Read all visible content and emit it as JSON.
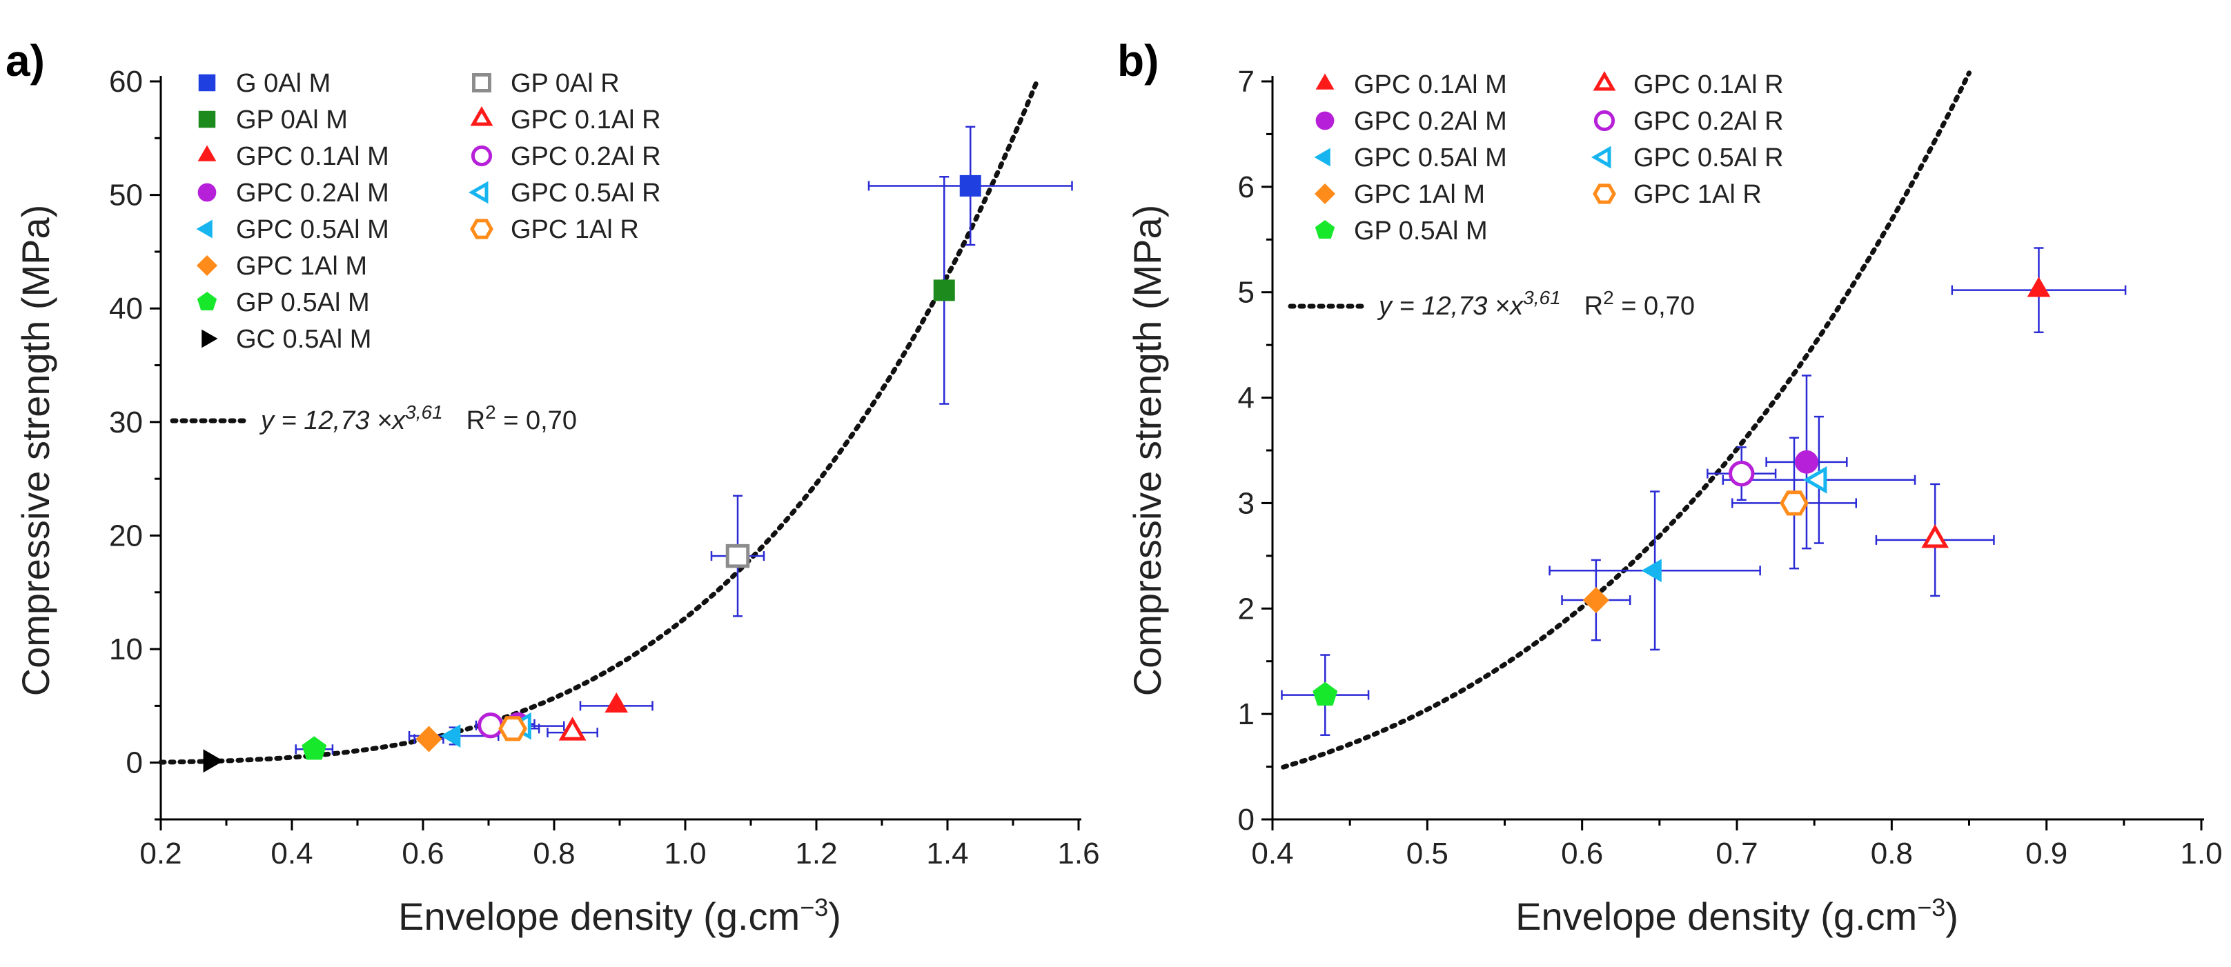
{
  "chart_data": [
    {
      "type": "scatter",
      "panel_label": "a)",
      "xlabel": "Envelope density (g.cm⁻³)",
      "xlabel_main": "Envelope density (g.cm",
      "xlabel_sup": "−3",
      "xlabel_tail": ")",
      "ylabel": "Compressive strength (MPa)",
      "xlim": [
        0.2,
        1.6
      ],
      "ylim": [
        -5,
        60
      ],
      "xticks": [
        "0.2",
        "0.4",
        "0.6",
        "0.8",
        "1.0",
        "1.2",
        "1.4",
        "1.6"
      ],
      "yticks": [
        "0",
        "10",
        "20",
        "30",
        "40",
        "50",
        "60"
      ],
      "legend_position": "top-left",
      "series": [
        {
          "name": "G 0Al M",
          "marker": "square",
          "filled": true,
          "color": "#1f3fe0",
          "x": 1.435,
          "y": 50.8,
          "xerr": 0.155,
          "yerr": 5.2
        },
        {
          "name": "GP 0Al M",
          "marker": "square",
          "filled": true,
          "color": "#1d8a1d",
          "x": 1.395,
          "y": 41.6,
          "xerr": 0.0,
          "yerr": 10.0
        },
        {
          "name": "GPC 0.1Al M",
          "marker": "triangle",
          "filled": true,
          "color": "#ff1a1a",
          "x": 0.895,
          "y": 5.0,
          "xerr": 0.055,
          "yerr": 0.4
        },
        {
          "name": "GPC 0.2Al M",
          "marker": "circle",
          "filled": true,
          "color": "#b620d8",
          "x": 0.745,
          "y": 3.4,
          "xerr": 0.025,
          "yerr": 0.8
        },
        {
          "name": "GPC 0.5Al M",
          "marker": "triangle-left",
          "filled": true,
          "color": "#16b5f0",
          "x": 0.647,
          "y": 2.35,
          "xerr": 0.068,
          "yerr": 0.75
        },
        {
          "name": "GPC 1Al M",
          "marker": "diamond",
          "filled": true,
          "color": "#ff8c1a",
          "x": 0.609,
          "y": 2.08,
          "xerr": 0.022,
          "yerr": 0.38
        },
        {
          "name": "GP 0.5Al M",
          "marker": "pentagon",
          "filled": true,
          "color": "#17e82c",
          "x": 0.434,
          "y": 1.18,
          "xerr": 0.028,
          "yerr": 0.38
        },
        {
          "name": "GC 0.5Al M",
          "marker": "triangle-right",
          "filled": true,
          "color": "#000000",
          "x": 0.275,
          "y": 0.15,
          "xerr": 0.0,
          "yerr": 0.0
        },
        {
          "name": "GP 0Al R",
          "marker": "square",
          "filled": false,
          "color": "#8c8c8c",
          "x": 1.08,
          "y": 18.2,
          "xerr": 0.04,
          "yerr": 5.3
        },
        {
          "name": "GPC 0.1Al R",
          "marker": "triangle",
          "filled": false,
          "color": "#ff1a1a",
          "x": 0.828,
          "y": 2.65,
          "xerr": 0.038,
          "yerr": 0.53
        },
        {
          "name": "GPC 0.2Al R",
          "marker": "circle",
          "filled": false,
          "color": "#b620d8",
          "x": 0.703,
          "y": 3.28,
          "xerr": 0.022,
          "yerr": 0.25
        },
        {
          "name": "GPC 0.5Al R",
          "marker": "triangle-left",
          "filled": false,
          "color": "#16b5f0",
          "x": 0.753,
          "y": 3.22,
          "xerr": 0.062,
          "yerr": 0.6
        },
        {
          "name": "GPC 1Al R",
          "marker": "hexagon",
          "filled": false,
          "color": "#ff8c1a",
          "x": 0.737,
          "y": 3.0,
          "xerr": 0.04,
          "yerr": 0.62
        }
      ],
      "fit": {
        "label_eq": "y = 12,73 ×x",
        "label_exp": "3,61",
        "r2_label": "R",
        "r2_sup": "2",
        "r2_value": " = 0,70",
        "a": 12.73,
        "b": 3.61,
        "x_range": [
          0.2,
          1.535
        ]
      }
    },
    {
      "type": "scatter",
      "panel_label": "b)",
      "xlabel": "Envelope density (g.cm⁻³)",
      "xlabel_main": "Envelope density (g.cm",
      "xlabel_sup": "−3",
      "xlabel_tail": ")",
      "ylabel": "Compressive strength (MPa)",
      "xlim": [
        0.4,
        1.0
      ],
      "ylim": [
        0,
        7
      ],
      "xticks": [
        "0.4",
        "0.5",
        "0.6",
        "0.7",
        "0.8",
        "0.9",
        "1.0"
      ],
      "yticks": [
        "0",
        "1",
        "2",
        "3",
        "4",
        "5",
        "6",
        "7"
      ],
      "legend_position": "top-left",
      "series": [
        {
          "name": "GPC 0.1Al M",
          "marker": "triangle",
          "filled": true,
          "color": "#ff1a1a",
          "x": 0.895,
          "y": 5.02,
          "xerr": 0.056,
          "yerr": 0.4
        },
        {
          "name": "GPC 0.2Al M",
          "marker": "circle",
          "filled": true,
          "color": "#b620d8",
          "x": 0.745,
          "y": 3.39,
          "xerr": 0.026,
          "yerr": 0.82
        },
        {
          "name": "GPC 0.5Al M",
          "marker": "triangle-left",
          "filled": true,
          "color": "#16b5f0",
          "x": 0.647,
          "y": 2.36,
          "xerr": 0.068,
          "yerr": 0.75
        },
        {
          "name": "GPC 1Al M",
          "marker": "diamond",
          "filled": true,
          "color": "#ff8c1a",
          "x": 0.609,
          "y": 2.08,
          "xerr": 0.022,
          "yerr": 0.38
        },
        {
          "name": "GP 0.5Al M",
          "marker": "pentagon",
          "filled": true,
          "color": "#17e82c",
          "x": 0.434,
          "y": 1.18,
          "xerr": 0.028,
          "yerr": 0.38
        },
        {
          "name": "GPC 0.1Al R",
          "marker": "triangle",
          "filled": false,
          "color": "#ff1a1a",
          "x": 0.828,
          "y": 2.65,
          "xerr": 0.038,
          "yerr": 0.53
        },
        {
          "name": "GPC 0.2Al R",
          "marker": "circle",
          "filled": false,
          "color": "#b620d8",
          "x": 0.703,
          "y": 3.28,
          "xerr": 0.022,
          "yerr": 0.25
        },
        {
          "name": "GPC 0.5Al R",
          "marker": "triangle-left",
          "filled": false,
          "color": "#16b5f0",
          "x": 0.753,
          "y": 3.22,
          "xerr": 0.062,
          "yerr": 0.6
        },
        {
          "name": "GPC 1Al R",
          "marker": "hexagon",
          "filled": false,
          "color": "#ff8c1a",
          "x": 0.737,
          "y": 3.0,
          "xerr": 0.04,
          "yerr": 0.62
        }
      ],
      "fit": {
        "label_eq": "y = 12,73 ×x",
        "label_exp": "3,61",
        "r2_label": "R",
        "r2_sup": "2",
        "r2_value": " = 0,70",
        "a": 12.73,
        "b": 3.61,
        "x_range": [
          0.407,
          0.85
        ]
      }
    }
  ]
}
